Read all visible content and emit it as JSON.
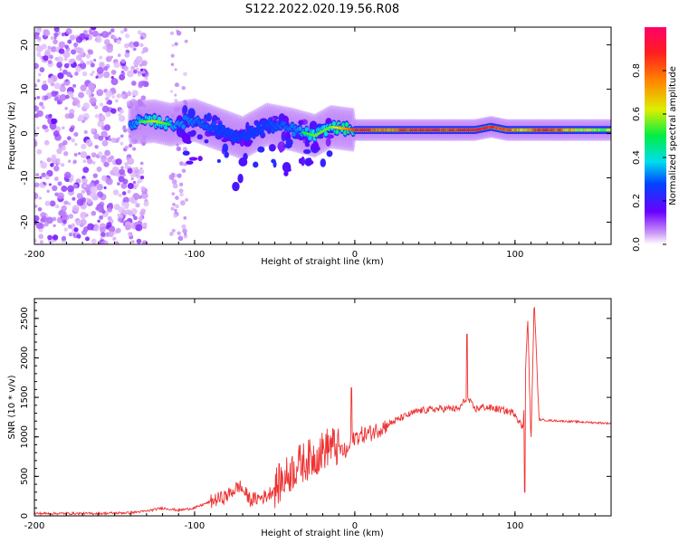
{
  "title": "S122.2022.020.19.56.R08",
  "chart_data": [
    {
      "type": "heatmap",
      "xlabel": "Height of straight line (km)",
      "ylabel": "Frequency (Hz)",
      "xlim": [
        -200,
        160
      ],
      "ylim": [
        -25,
        24
      ],
      "xticks": [
        -200,
        -100,
        0,
        100
      ],
      "yticks": [
        -20,
        -10,
        0,
        10,
        20
      ],
      "colorbar": {
        "label": "Normalized spectral amplitude",
        "range": [
          0,
          1
        ],
        "ticks": [
          "0.0",
          "0.2",
          "0.4",
          "0.6",
          "0.8"
        ],
        "tick_values": [
          0,
          0.2,
          0.4,
          0.6,
          0.8
        ]
      },
      "ridge": [
        {
          "x": -140,
          "f": 2.5,
          "a": 0.45
        },
        {
          "x": -125,
          "f": 2.8,
          "a": 0.6
        },
        {
          "x": -115,
          "f": 2.0,
          "a": 0.5
        },
        {
          "x": -100,
          "f": 3.0,
          "a": 0.45
        },
        {
          "x": -85,
          "f": 1.0,
          "a": 0.4
        },
        {
          "x": -70,
          "f": -1.0,
          "a": 0.4
        },
        {
          "x": -55,
          "f": 2.0,
          "a": 0.4
        },
        {
          "x": -40,
          "f": 1.0,
          "a": 0.45
        },
        {
          "x": -25,
          "f": -0.5,
          "a": 0.55
        },
        {
          "x": -15,
          "f": 1.5,
          "a": 0.55
        },
        {
          "x": 0,
          "f": 0.8,
          "a": 0.85
        },
        {
          "x": 20,
          "f": 0.8,
          "a": 0.7
        },
        {
          "x": 45,
          "f": 0.8,
          "a": 0.85
        },
        {
          "x": 60,
          "f": 0.8,
          "a": 0.8
        },
        {
          "x": 75,
          "f": 0.8,
          "a": 0.85
        },
        {
          "x": 85,
          "f": 1.5,
          "a": 0.8
        },
        {
          "x": 95,
          "f": 0.8,
          "a": 0.75
        },
        {
          "x": 105,
          "f": 0.8,
          "a": 0.6
        },
        {
          "x": 120,
          "f": 0.8,
          "a": 0.85
        },
        {
          "x": 140,
          "f": 0.8,
          "a": 0.55
        },
        {
          "x": 160,
          "f": 0.8,
          "a": 0.5
        }
      ]
    },
    {
      "type": "line",
      "xlabel": "Height of straight line (km)",
      "ylabel": "SNR (10 * v/v)",
      "xlim": [
        -200,
        160
      ],
      "ylim": [
        0,
        2750
      ],
      "xticks": [
        -200,
        -100,
        0,
        100
      ],
      "yticks": [
        0,
        500,
        1000,
        1500,
        2000,
        2500
      ],
      "color": "#ee3333",
      "series": [
        {
          "name": "SNR",
          "x": [
            -200,
            -180,
            -160,
            -140,
            -130,
            -120,
            -110,
            -100,
            -90,
            -80,
            -72,
            -65,
            -55,
            -45,
            -35,
            -25,
            -15,
            -5,
            0,
            10,
            20,
            30,
            40,
            50,
            60,
            65,
            70,
            75,
            80,
            90,
            100,
            105,
            108,
            110,
            112,
            115,
            120,
            130,
            140,
            150,
            160
          ],
          "y": [
            30,
            30,
            30,
            40,
            60,
            100,
            70,
            100,
            180,
            250,
            380,
            200,
            250,
            450,
            650,
            750,
            900,
            800,
            1000,
            1050,
            1150,
            1250,
            1330,
            1350,
            1360,
            1350,
            1500,
            1350,
            1380,
            1350,
            1300,
            1100,
            2500,
            900,
            2750,
            1220,
            1210,
            1200,
            1190,
            1180,
            1170
          ]
        }
      ]
    }
  ]
}
